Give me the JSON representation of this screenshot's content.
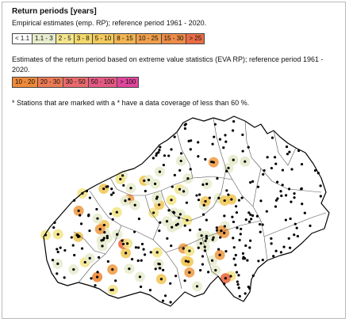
{
  "title": "Return periods [years]",
  "empirical_caption": "Empirical estimates (emp. RP); reference period 1961 - 2020.",
  "eva_caption": "Estimates of the return period based on extreme value statistics (EVA RP); reference period 1961 - 2020.",
  "note": "* Stations that are marked with a * have a data coverage of less than 60 %.",
  "empirical_legend": [
    {
      "label": "< 1.1",
      "color": "#ffffff"
    },
    {
      "label": "1.1 - 3",
      "color": "#e8eccf"
    },
    {
      "label": "2 - 5",
      "color": "#f3e58c"
    },
    {
      "label": "3 - 8",
      "color": "#f2d86a"
    },
    {
      "label": "5 - 10",
      "color": "#f2c95c"
    },
    {
      "label": "8 - 15",
      "color": "#f1b452"
    },
    {
      "label": "10 - 25",
      "color": "#ef9f4b"
    },
    {
      "label": "15 - 30",
      "color": "#ed8b48"
    },
    {
      "label": "> 25",
      "color": "#ea6b45"
    }
  ],
  "eva_legend": [
    {
      "label": "10 - 20",
      "color": "#ef8a3a"
    },
    {
      "label": "20 - 30",
      "color": "#ec7a55"
    },
    {
      "label": "30 - 50",
      "color": "#e96a6c"
    },
    {
      "label": "50 - 100",
      "color": "#e55a84"
    },
    {
      "label": "> 100",
      "color": "#e0469d"
    }
  ],
  "map": {
    "country": "Switzerland",
    "station_color": "#000000",
    "border_color": "#000000",
    "canton_color": "#555555"
  }
}
